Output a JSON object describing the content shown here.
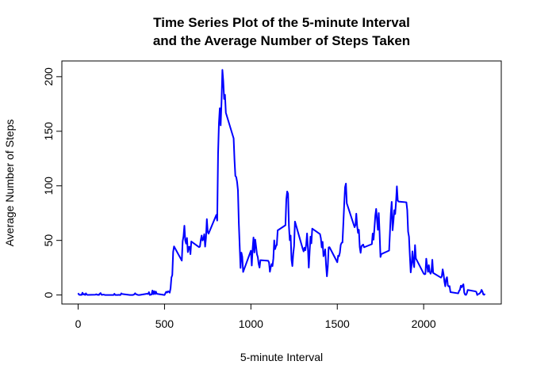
{
  "chart_data": {
    "type": "line",
    "title": [
      "Time Series Plot of the 5-minute Interval",
      "and the Average Number of Steps Taken"
    ],
    "x_label": "5-minute Interval",
    "y_label": "Average Number of Steps",
    "xlim": [
      -94.2,
      2449.2
    ],
    "ylim": [
      -8.25,
      214.4
    ],
    "xticks": [
      0,
      500,
      1000,
      1500,
      2000
    ],
    "yticks": [
      0,
      50,
      100,
      150,
      200
    ],
    "series": [
      {
        "color": "#0000ff",
        "x": [
          0,
          5,
          10,
          15,
          20,
          25,
          30,
          35,
          40,
          45,
          50,
          55,
          100,
          105,
          110,
          115,
          120,
          125,
          130,
          135,
          140,
          145,
          150,
          155,
          200,
          205,
          210,
          215,
          220,
          225,
          230,
          235,
          240,
          245,
          250,
          255,
          300,
          305,
          310,
          315,
          320,
          325,
          330,
          335,
          340,
          345,
          350,
          355,
          400,
          405,
          410,
          415,
          420,
          425,
          430,
          435,
          440,
          445,
          450,
          455,
          500,
          505,
          510,
          515,
          520,
          525,
          530,
          535,
          540,
          545,
          550,
          555,
          600,
          605,
          610,
          615,
          620,
          625,
          630,
          635,
          640,
          645,
          650,
          655,
          700,
          705,
          710,
          715,
          720,
          725,
          730,
          735,
          740,
          745,
          750,
          755,
          800,
          805,
          810,
          815,
          820,
          825,
          830,
          835,
          840,
          845,
          850,
          855,
          900,
          905,
          910,
          915,
          920,
          925,
          930,
          935,
          940,
          945,
          950,
          955,
          1000,
          1005,
          1010,
          1015,
          1020,
          1025,
          1030,
          1035,
          1040,
          1045,
          1050,
          1055,
          1100,
          1105,
          1110,
          1115,
          1120,
          1125,
          1130,
          1135,
          1140,
          1145,
          1150,
          1155,
          1200,
          1205,
          1210,
          1215,
          1220,
          1225,
          1230,
          1235,
          1240,
          1245,
          1250,
          1255,
          1300,
          1305,
          1310,
          1315,
          1320,
          1325,
          1330,
          1335,
          1340,
          1345,
          1350,
          1355,
          1400,
          1405,
          1410,
          1415,
          1420,
          1425,
          1430,
          1435,
          1440,
          1445,
          1450,
          1455,
          1500,
          1505,
          1510,
          1515,
          1520,
          1525,
          1530,
          1535,
          1540,
          1545,
          1550,
          1555,
          1600,
          1605,
          1610,
          1615,
          1620,
          1625,
          1630,
          1635,
          1640,
          1645,
          1650,
          1655,
          1700,
          1705,
          1710,
          1715,
          1720,
          1725,
          1730,
          1735,
          1740,
          1745,
          1750,
          1755,
          1800,
          1805,
          1810,
          1815,
          1820,
          1825,
          1830,
          1835,
          1840,
          1845,
          1850,
          1855,
          1900,
          1905,
          1910,
          1915,
          1920,
          1925,
          1930,
          1935,
          1940,
          1945,
          1950,
          1955,
          2000,
          2005,
          2010,
          2015,
          2020,
          2025,
          2030,
          2035,
          2040,
          2045,
          2050,
          2055,
          2100,
          2105,
          2110,
          2115,
          2120,
          2125,
          2130,
          2135,
          2140,
          2145,
          2150,
          2155,
          2200,
          2205,
          2210,
          2215,
          2220,
          2225,
          2230,
          2235,
          2240,
          2245,
          2250,
          2255,
          2300,
          2305,
          2310,
          2315,
          2320,
          2325,
          2330,
          2335,
          2340,
          2345,
          2350,
          2355
        ],
        "values": [
          1.7,
          0.3,
          0.1,
          0.2,
          0.1,
          2.1,
          0.5,
          0.9,
          0,
          1.5,
          0.3,
          0.1,
          0.3,
          0.7,
          0.2,
          0.3,
          0,
          1.1,
          1.8,
          0.2,
          0.2,
          0.4,
          0.3,
          0,
          0,
          0,
          1.1,
          0,
          0,
          0.1,
          0,
          0.2,
          0,
          0,
          1.5,
          0.9,
          0,
          0,
          0,
          0,
          0.2,
          0.6,
          1.6,
          0.6,
          0.5,
          0.1,
          0,
          0,
          1.2,
          0.9,
          2.6,
          0,
          0.3,
          0.4,
          4.1,
          0.7,
          3.5,
          0.8,
          3.1,
          1.1,
          0,
          1.6,
          3,
          2.2,
          3.3,
          3,
          2.1,
          6.1,
          16,
          18.3,
          39.5,
          44.5,
          31.5,
          49.3,
          53.8,
          63.5,
          50,
          47.1,
          52.2,
          39.3,
          44,
          44.2,
          37.4,
          49,
          43.8,
          44.4,
          50.5,
          54.5,
          49.9,
          51,
          55.7,
          44.3,
          52.3,
          69.5,
          57.8,
          56.2,
          73.4,
          68.2,
          129.4,
          157.5,
          171.2,
          155.4,
          177.3,
          206.2,
          195.9,
          179.6,
          183.4,
          167,
          143.5,
          124,
          109.1,
          108.1,
          103.7,
          95.9,
          66.2,
          45.2,
          24.8,
          38.8,
          34.98,
          21.1,
          40.6,
          26.98,
          42.4,
          52.7,
          38.9,
          50.8,
          44.3,
          37.4,
          34.7,
          28.3,
          25.1,
          31.9,
          31.4,
          29.7,
          21.3,
          25.5,
          28.4,
          26.5,
          33.4,
          50,
          42,
          44.6,
          46,
          59.2,
          63.9,
          87.7,
          94.8,
          92.8,
          63.4,
          50.2,
          54.5,
          32.4,
          26.5,
          37.7,
          45,
          67.3,
          42.3,
          39.9,
          43.3,
          40.98,
          46.2,
          56.4,
          42.8,
          25.1,
          39.97,
          53.5,
          47.3,
          60.8,
          55.8,
          51.96,
          43.6,
          48.7,
          35.5,
          37.5,
          41.8,
          27.5,
          17.1,
          26.1,
          43.6,
          43.8,
          30,
          36.1,
          35.5,
          38.8,
          45.96,
          47.8,
          48.1,
          65.3,
          82.9,
          98.7,
          102.1,
          83.96,
          62.1,
          64.1,
          74.5,
          63.2,
          56.9,
          59.8,
          43.9,
          38.6,
          44.7,
          45.5,
          46.2,
          43.7,
          46.6,
          56.3,
          50.7,
          61.2,
          72.7,
          78.9,
          68.9,
          59.7,
          75.1,
          56.5,
          34.8,
          37.5,
          40.7,
          58,
          74.7,
          85.3,
          59.3,
          67.8,
          77.7,
          74.2,
          85.3,
          99.5,
          86.6,
          85.6,
          84.9,
          77.8,
          58,
          53.4,
          36.3,
          20.7,
          27.4,
          40,
          30.2,
          25.5,
          45.7,
          33.5,
          19.6,
          19,
          19.3,
          33.3,
          26.8,
          21.2,
          27.3,
          21.3,
          19.5,
          21.3,
          32.3,
          20.2,
          15.9,
          17.2,
          23.5,
          19.2,
          12.5,
          8,
          14.7,
          16.3,
          8.7,
          7.8,
          8.1,
          2.6,
          1.5,
          3.7,
          4.8,
          8.5,
          7.1,
          8.7,
          9.8,
          2.2,
          0.3,
          0.1,
          1.6,
          4.6,
          3.3,
          2.8,
          0,
          0.8,
          0.96,
          1.6,
          2.6,
          4.7,
          3.3,
          0.6,
          0.2,
          1.1
        ]
      }
    ]
  }
}
